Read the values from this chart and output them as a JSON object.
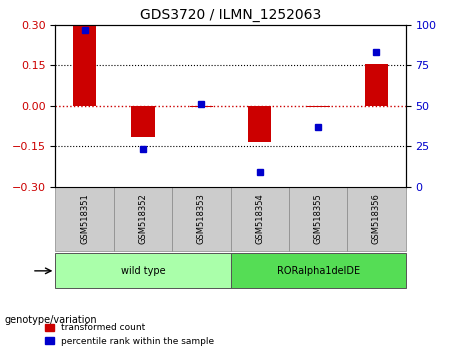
{
  "title": "GDS3720 / ILMN_1252063",
  "samples": [
    "GSM518351",
    "GSM518352",
    "GSM518353",
    "GSM518354",
    "GSM518355",
    "GSM518356"
  ],
  "bar_values": [
    0.295,
    -0.115,
    -0.005,
    -0.135,
    -0.005,
    0.155
  ],
  "percentile_values": [
    97,
    23,
    51,
    9,
    37,
    83
  ],
  "groups": [
    {
      "label": "wild type",
      "indices": [
        0,
        1,
        2
      ],
      "color": "#90EE90"
    },
    {
      "label": "RORalpha1delDE",
      "indices": [
        3,
        4,
        5
      ],
      "color": "#00CC00"
    }
  ],
  "ylim_left": [
    -0.3,
    0.3
  ],
  "ylim_right": [
    0,
    100
  ],
  "yticks_left": [
    -0.3,
    -0.15,
    0,
    0.15,
    0.3
  ],
  "yticks_right": [
    0,
    25,
    50,
    75,
    100
  ],
  "bar_color": "#CC0000",
  "dot_color": "#0000CC",
  "hline_color": "#CC0000",
  "hline_style": "dotted",
  "grid_color": "#000000",
  "grid_style": "dotted",
  "grid_levels": [
    -0.15,
    0.15
  ],
  "bar_width": 0.4,
  "legend_label_bar": "transformed count",
  "legend_label_dot": "percentile rank within the sample",
  "genotype_label": "genotype/variation",
  "background_plot": "#FFFFFF",
  "background_xticklabels": "#CCCCCC",
  "group_box_color_wt": "#AAFFAA",
  "group_box_color_ror": "#55DD55"
}
